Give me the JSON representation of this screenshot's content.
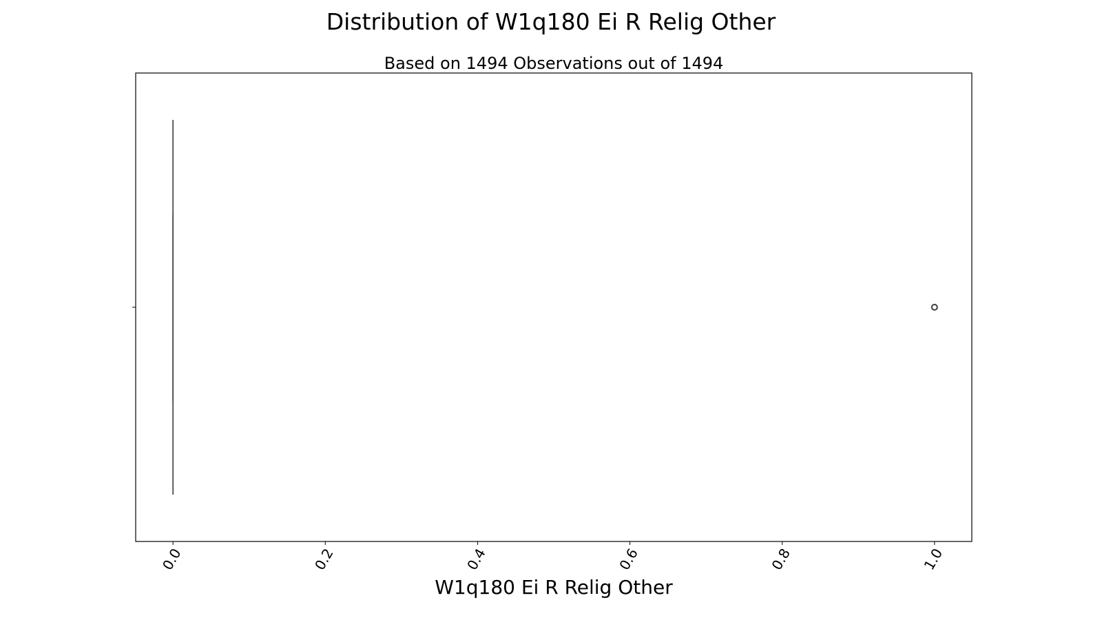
{
  "chart_data": {
    "type": "box",
    "title": "Distribution of W1q180 Ei R Relig Other",
    "subtitle": "Based on 1494 Observations out of 1494",
    "xlabel": "W1q180 Ei R Relig Other",
    "ylabel": "",
    "xlim": [
      -0.049,
      1.049
    ],
    "x_ticks": [
      0.0,
      0.2,
      0.4,
      0.6,
      0.8,
      1.0
    ],
    "x_tick_labels": [
      "0.0",
      "0.2",
      "0.4",
      "0.6",
      "0.8",
      "1.0"
    ],
    "tick_label_rotation_deg": 60,
    "orientation": "horizontal",
    "grid": false,
    "box": {
      "min": 0.0,
      "q1": 0.0,
      "median": 0.0,
      "q3": 0.0,
      "max": 0.0
    },
    "outliers": [
      1.0
    ],
    "colors": {
      "box_line": "#3f3f3f",
      "frame": "#000000",
      "outlier_edge": "#3f3f3f",
      "outlier_fill": "#ffffff"
    }
  }
}
